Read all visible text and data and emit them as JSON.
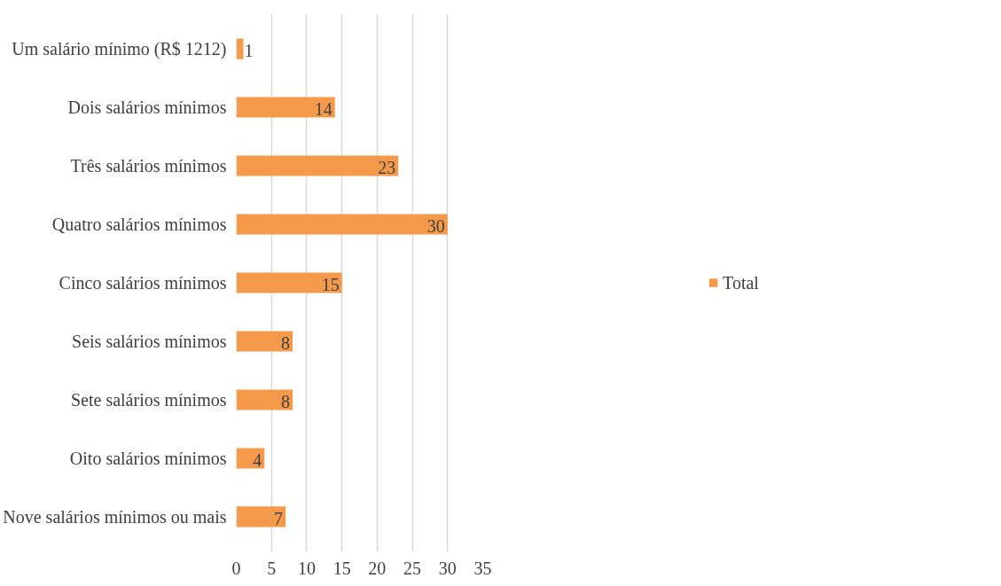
{
  "chart_data": {
    "type": "bar",
    "orientation": "horizontal",
    "categories": [
      "Um salário mínimo (R$ 1212)",
      "Dois salários mínimos",
      "Três salários mínimos",
      "Quatro salários mínimos",
      "Cinco salários mínimos",
      "Seis salários mínimos",
      "Sete salários mínimos",
      "Oito salários mínimos",
      "Nove salários mínimos ou mais"
    ],
    "series": [
      {
        "name": "Total",
        "color": "#f59a4a",
        "values": [
          1,
          14,
          23,
          30,
          15,
          8,
          8,
          4,
          7
        ]
      }
    ],
    "xlim": [
      0,
      35
    ],
    "xticks": [
      0,
      5,
      10,
      15,
      20,
      25,
      30,
      35
    ],
    "grid": "x",
    "legend": "right",
    "data_labels": true
  }
}
